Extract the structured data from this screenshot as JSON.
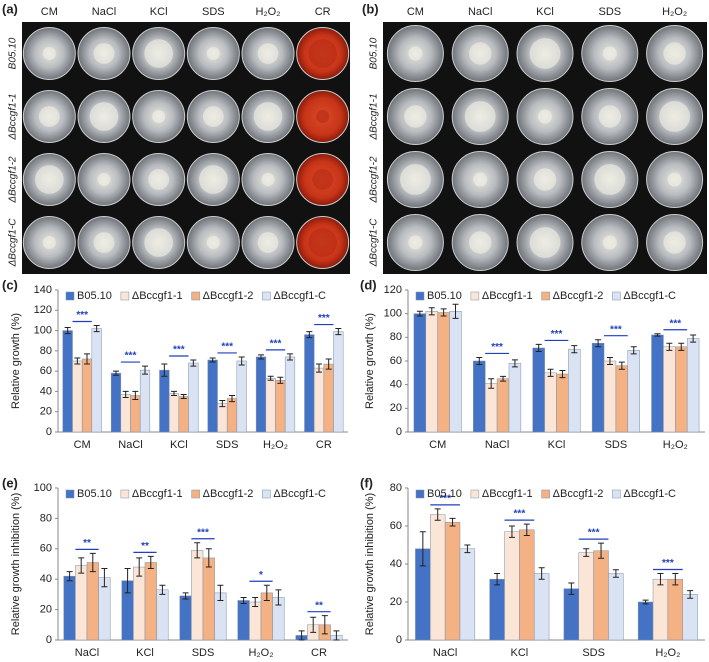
{
  "panels": [
    {
      "label": "(a)",
      "columns": [
        "CM",
        "NaCl",
        "KCl",
        "SDS",
        "H₂O₂",
        "CR"
      ],
      "rows": [
        "B05.10",
        "ΔBccgf1-1",
        "ΔBccgf1-2",
        "ΔBccgf1-C"
      ]
    },
    {
      "label": "(b)",
      "columns": [
        "CM",
        "NaCl",
        "KCl",
        "SDS",
        "H₂O₂"
      ],
      "rows": [
        "B05.10",
        "ΔBccgf1-1",
        "ΔBccgf1-2",
        "ΔBccgf1-C"
      ]
    }
  ],
  "chart_data": [
    {
      "type": "bar",
      "label": "(c)",
      "y_label": "Relative growth (%)",
      "categories": [
        "CM",
        "NaCl",
        "KCl",
        "SDS",
        "H₂O₂",
        "CR"
      ],
      "ylim": [
        0,
        140
      ],
      "yticks": [
        0,
        20,
        40,
        60,
        80,
        100,
        120,
        140
      ],
      "legend": "top",
      "significance": [
        "***",
        "***",
        "***",
        "***",
        "***",
        "***"
      ],
      "series": [
        {
          "name": "B05.10",
          "color": "#4472c4",
          "values": [
            100,
            58,
            61,
            71,
            74,
            96
          ],
          "errors": [
            3,
            2,
            6,
            2,
            2,
            3
          ]
        },
        {
          "name": "ΔBccgf1-1",
          "color": "#fbe5d6",
          "values": [
            70,
            37,
            38,
            28,
            53,
            63
          ],
          "errors": [
            3,
            3,
            2,
            3,
            2,
            4
          ]
        },
        {
          "name": "ΔBccgf1-2",
          "color": "#f4b183",
          "values": [
            72,
            36,
            35,
            33,
            51,
            67
          ],
          "errors": [
            5,
            4,
            2,
            3,
            3,
            5
          ]
        },
        {
          "name": "ΔBccgf1-C",
          "color": "#dae3f3",
          "values": [
            102,
            61,
            68,
            70,
            74,
            99
          ],
          "errors": [
            3,
            4,
            3,
            4,
            3,
            3
          ]
        }
      ]
    },
    {
      "type": "bar",
      "label": "(d)",
      "y_label": "Relative growth (%)",
      "categories": [
        "CM",
        "NaCl",
        "KCl",
        "SDS",
        "H₂O₂"
      ],
      "ylim": [
        0,
        120
      ],
      "yticks": [
        0,
        20,
        40,
        60,
        80,
        100,
        120
      ],
      "legend": "top",
      "significance": [
        null,
        "***",
        "***",
        "***",
        "***"
      ],
      "series": [
        {
          "name": "B05.10",
          "color": "#4472c4",
          "values": [
            100,
            60,
            71,
            75,
            82
          ],
          "errors": [
            2,
            3,
            3,
            3,
            1
          ]
        },
        {
          "name": "ΔBccgf1-1",
          "color": "#fbe5d6",
          "values": [
            102,
            41,
            50,
            60,
            72
          ],
          "errors": [
            3,
            4,
            3,
            3,
            3
          ]
        },
        {
          "name": "ΔBccgf1-2",
          "color": "#f4b183",
          "values": [
            101,
            45,
            49,
            56,
            72
          ],
          "errors": [
            3,
            2,
            3,
            3,
            3
          ]
        },
        {
          "name": "ΔBccgf1-C",
          "color": "#dae3f3",
          "values": [
            102,
            58,
            70,
            69,
            79
          ],
          "errors": [
            6,
            3,
            3,
            3,
            3
          ]
        }
      ]
    },
    {
      "type": "bar",
      "label": "(e)",
      "y_label": "Relative growth inhibition (%)",
      "categories": [
        "NaCl",
        "KCl",
        "SDS",
        "H₂O₂",
        "CR"
      ],
      "ylim": [
        0,
        100
      ],
      "yticks": [
        0,
        20,
        40,
        60,
        80,
        100
      ],
      "legend": "top",
      "significance": [
        "**",
        "**",
        "***",
        "*",
        "**"
      ],
      "series": [
        {
          "name": "B05.10",
          "color": "#4472c4",
          "values": [
            42,
            39,
            29,
            26,
            3
          ],
          "errors": [
            3,
            8,
            2,
            2,
            3
          ]
        },
        {
          "name": "ΔBccgf1-1",
          "color": "#fbe5d6",
          "values": [
            49,
            48,
            59,
            25,
            10
          ],
          "errors": [
            5,
            6,
            5,
            3,
            5
          ]
        },
        {
          "name": "ΔBccgf1-2",
          "color": "#f4b183",
          "values": [
            51,
            51,
            54,
            31,
            10
          ],
          "errors": [
            6,
            4,
            6,
            5,
            6
          ]
        },
        {
          "name": "ΔBccgf1-C",
          "color": "#dae3f3",
          "values": [
            41,
            33,
            31,
            28,
            3
          ],
          "errors": [
            6,
            3,
            5,
            5,
            3
          ]
        }
      ]
    },
    {
      "type": "bar",
      "label": "(f)",
      "y_label": "Relative growth inhibition (%)",
      "categories": [
        "NaCl",
        "KCl",
        "SDS",
        "H₂O₂"
      ],
      "ylim": [
        0,
        80
      ],
      "yticks": [
        0,
        20,
        40,
        60,
        80
      ],
      "legend": "top",
      "significance": [
        "***",
        "***",
        "***",
        "***"
      ],
      "series": [
        {
          "name": "B05.10",
          "color": "#4472c4",
          "values": [
            48,
            32,
            27,
            20
          ],
          "errors": [
            9,
            3,
            3,
            1
          ]
        },
        {
          "name": "ΔBccgf1-1",
          "color": "#fbe5d6",
          "values": [
            66,
            57,
            46,
            32
          ],
          "errors": [
            3,
            3,
            2,
            3
          ]
        },
        {
          "name": "ΔBccgf1-2",
          "color": "#f4b183",
          "values": [
            62,
            58,
            47,
            32
          ],
          "errors": [
            2,
            3,
            4,
            3
          ]
        },
        {
          "name": "ΔBccgf1-C",
          "color": "#dae3f3",
          "values": [
            48,
            35,
            35,
            24
          ],
          "errors": [
            2,
            3,
            2,
            2
          ]
        }
      ]
    }
  ]
}
